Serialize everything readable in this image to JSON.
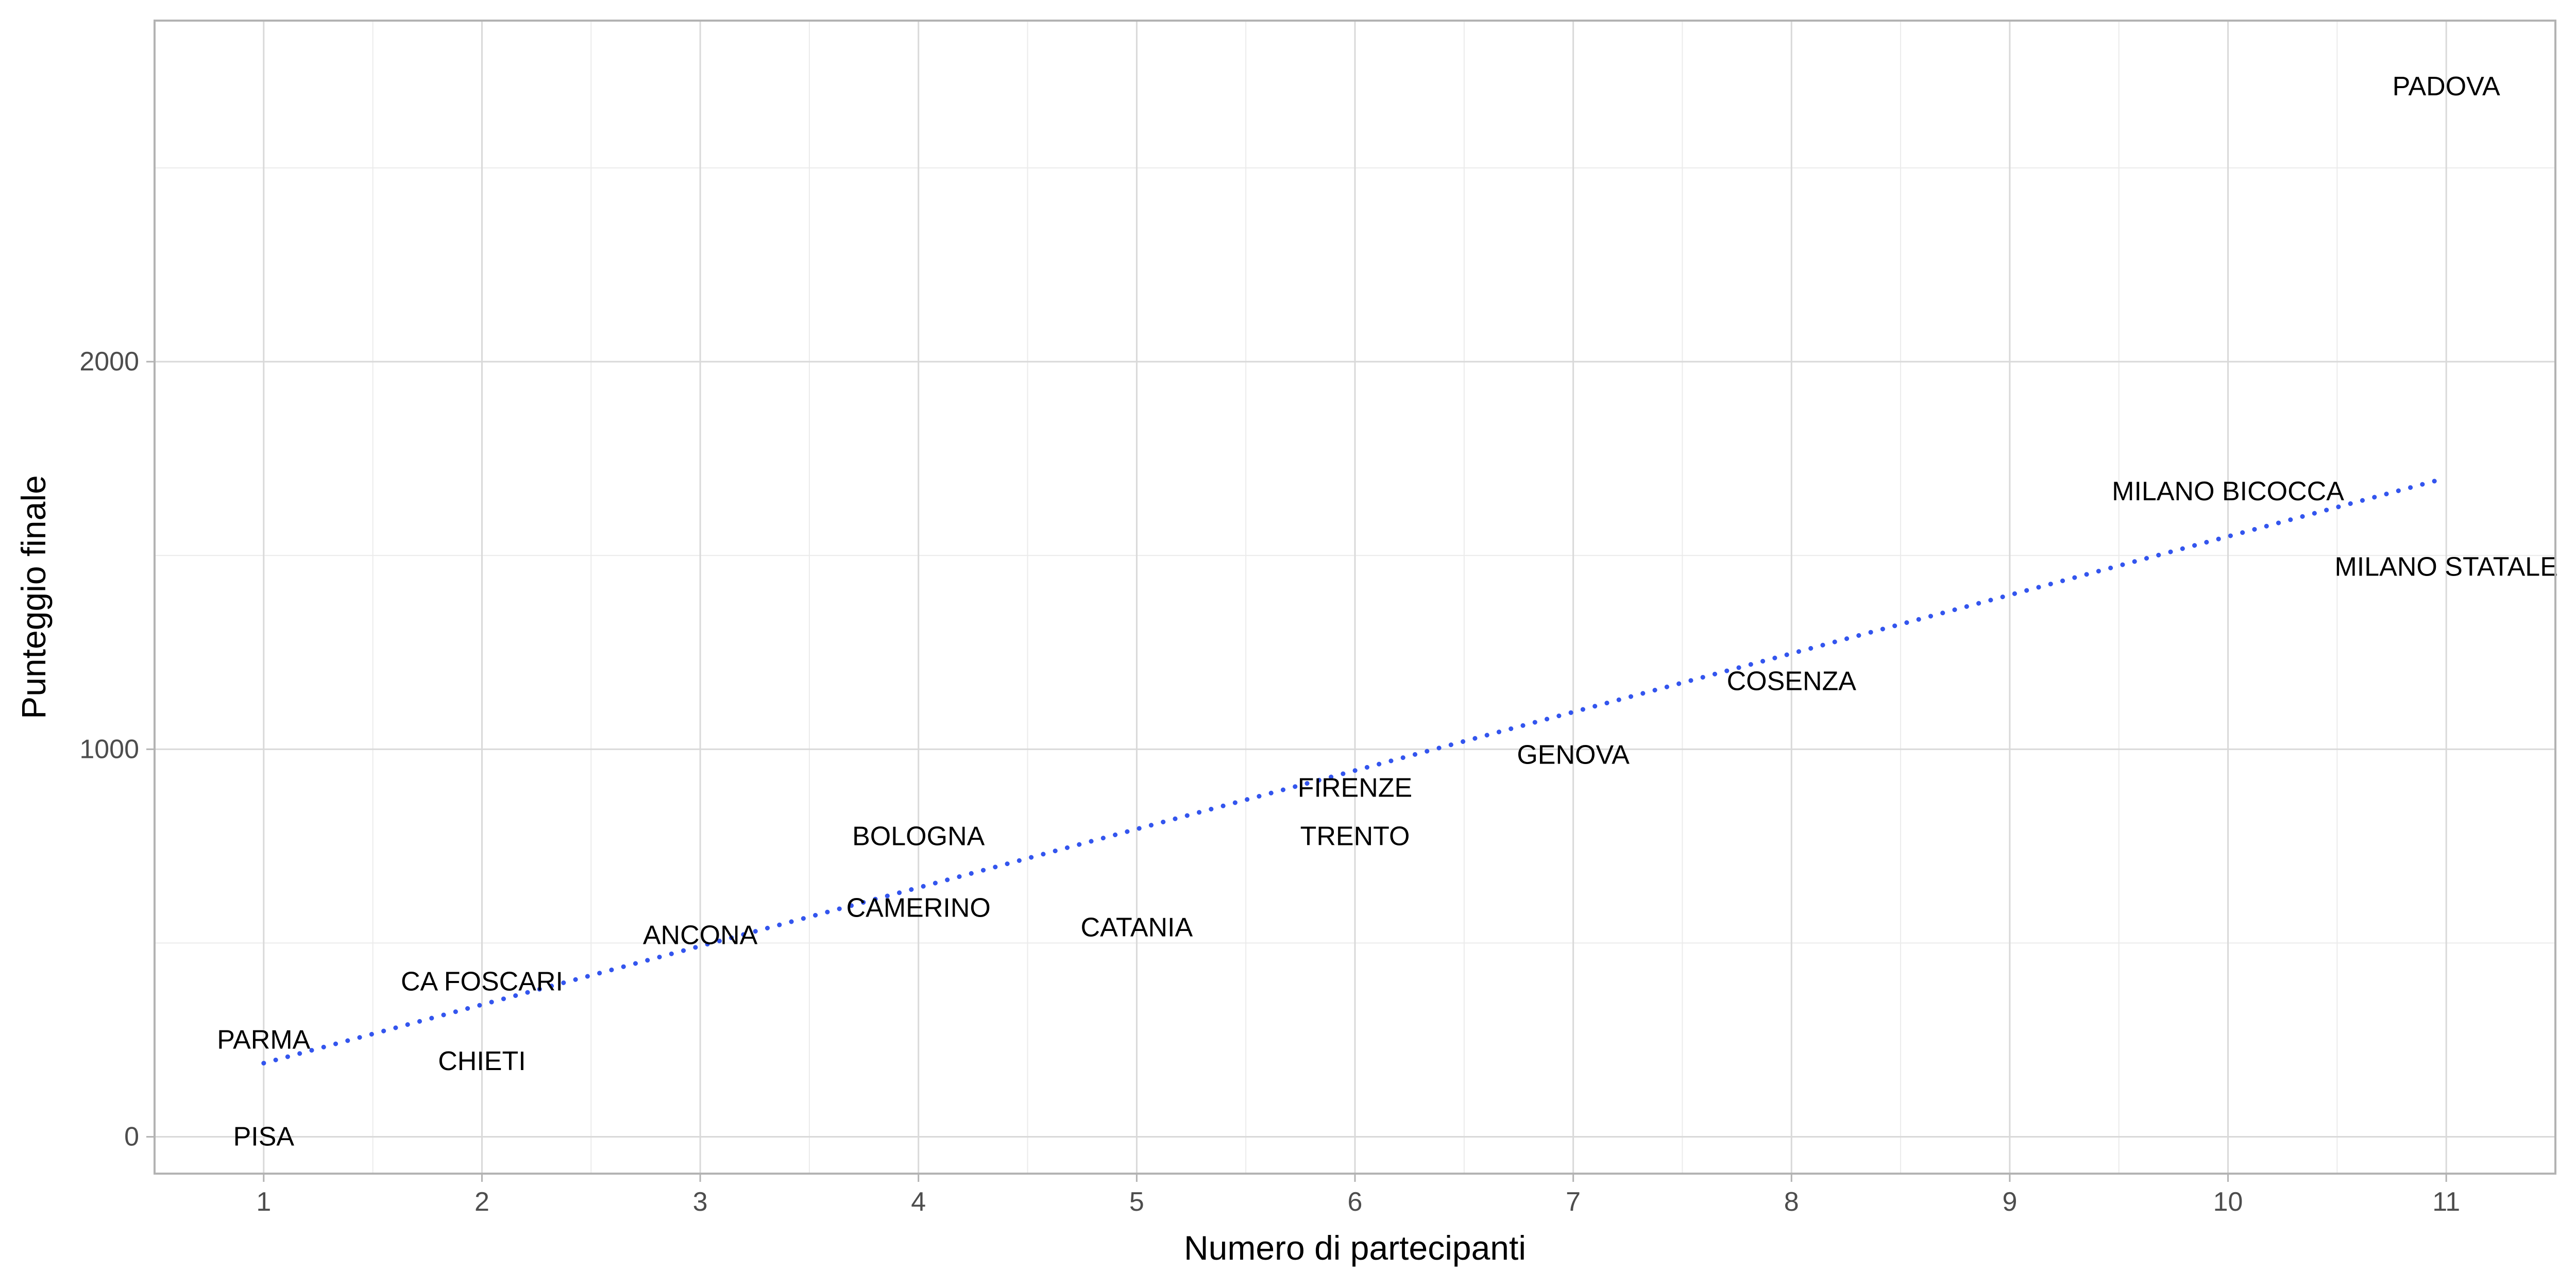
{
  "chart_data": {
    "type": "scatter",
    "title": "",
    "xlabel": "Numero di partecipanti",
    "ylabel": "Punteggio finale",
    "xlim": [
      0.5,
      11.5
    ],
    "ylim": [
      -95,
      2880
    ],
    "xticks": [
      1,
      2,
      3,
      4,
      5,
      6,
      7,
      8,
      9,
      10,
      11
    ],
    "yticks": [
      0,
      1000,
      2000
    ],
    "grid": true,
    "legend": "none",
    "points": [
      {
        "label": "PADOVA",
        "x": 11,
        "y": 2710
      },
      {
        "label": "MILANO BICOCCA",
        "x": 10,
        "y": 1665
      },
      {
        "label": "MILANO STATALE",
        "x": 11,
        "y": 1470
      },
      {
        "label": "COSENZA",
        "x": 8,
        "y": 1175
      },
      {
        "label": "GENOVA",
        "x": 7,
        "y": 985
      },
      {
        "label": "FIRENZE",
        "x": 6,
        "y": 900
      },
      {
        "label": "TRENTO",
        "x": 6,
        "y": 775
      },
      {
        "label": "BOLOGNA",
        "x": 4,
        "y": 775
      },
      {
        "label": "CAMERINO",
        "x": 4,
        "y": 590
      },
      {
        "label": "CATANIA",
        "x": 5,
        "y": 540
      },
      {
        "label": "ANCONA",
        "x": 3,
        "y": 520
      },
      {
        "label": "CA FOSCARI",
        "x": 2,
        "y": 400
      },
      {
        "label": "PARMA",
        "x": 1,
        "y": 250
      },
      {
        "label": "CHIETI",
        "x": 2,
        "y": 195
      },
      {
        "label": "PISA",
        "x": 1,
        "y": 0
      }
    ],
    "trend_line": {
      "style": "dotted",
      "color": "#3355ee",
      "x": [
        1,
        11
      ],
      "y": [
        190,
        1700
      ]
    },
    "colors": {
      "grid_major": "#d9d9d9",
      "grid_minor": "#ebebeb",
      "panel_border": "#b3b3b3",
      "tick_text": "#4d4d4d",
      "label_text": "#000000"
    }
  }
}
